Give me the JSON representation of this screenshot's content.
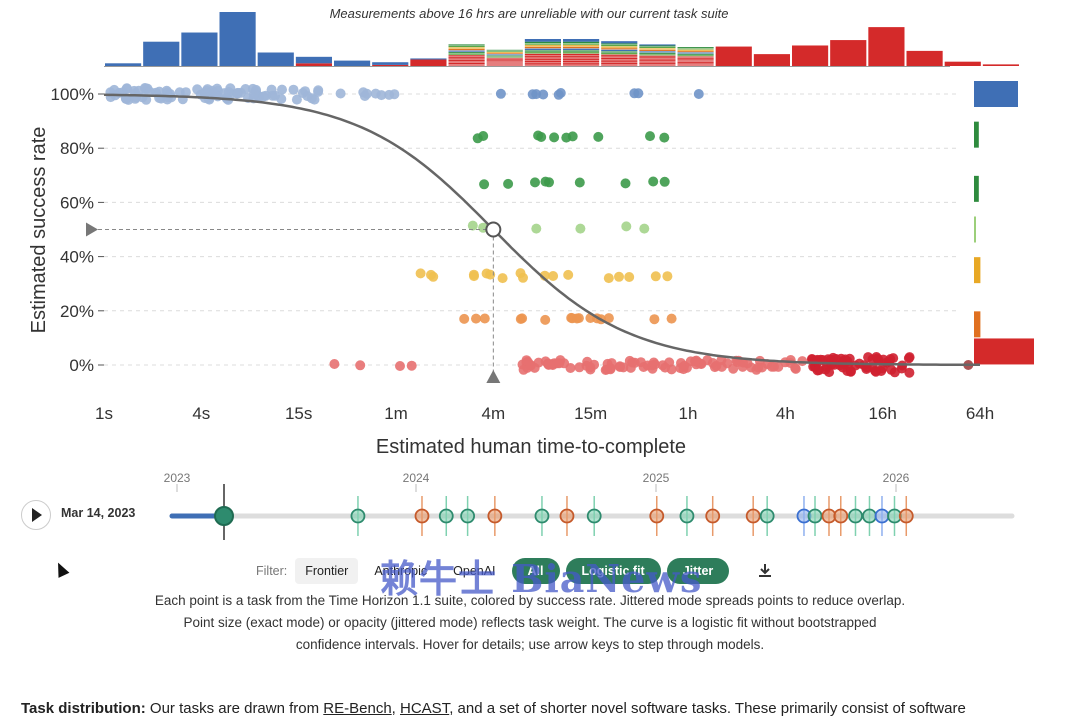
{
  "chart_data": {
    "type": "scatter",
    "title": "",
    "top_note": "Measurements above 16 hrs are unreliable with our current task suite",
    "ylabel": "Estimated success rate",
    "xlabel": "Estimated human time-to-complete",
    "x_ticks": [
      "1s",
      "4s",
      "15s",
      "1m",
      "4m",
      "15m",
      "1h",
      "4h",
      "16h",
      "64h"
    ],
    "y_ticks": [
      "0%",
      "20%",
      "40%",
      "60%",
      "80%",
      "100%"
    ],
    "ylim": [
      0,
      100
    ],
    "x_scale": "log4 steps (1s to 64h)",
    "grid": "horizontal dashed",
    "fit": {
      "type": "logistic",
      "midpoint_x_label": "4m",
      "midpoint_y": 50
    },
    "colors": {
      "p100": "#3f6fb5",
      "p80": "#2e8b3e",
      "p60": "#5aa745",
      "p40": "#9ccf7a",
      "p20": "#e8a825",
      "p10": "#e07020",
      "p0": "#d42a2a",
      "curve": "#666666"
    },
    "top_histogram": {
      "note": "task counts by time bin, stacked by success",
      "bins": [
        {
          "blue": 0.05,
          "red": 0
        },
        {
          "blue": 0.45,
          "red": 0
        },
        {
          "blue": 0.62,
          "red": 0
        },
        {
          "blue": 1.0,
          "red": 0
        },
        {
          "blue": 0.25,
          "red": 0
        },
        {
          "blue": 0.12,
          "red": 0.05
        },
        {
          "blue": 0.1,
          "red": 0
        },
        {
          "blue": 0.05,
          "red": 0.02
        },
        {
          "blue": 0.02,
          "red": 0.12
        },
        {
          "blue": 0,
          "red": 0.4,
          "mixed": true
        },
        {
          "blue": 0,
          "red": 0.3,
          "mixed": true
        },
        {
          "blue": 0.05,
          "red": 0.45,
          "mixed": true
        },
        {
          "blue": 0.05,
          "red": 0.45,
          "mixed": true
        },
        {
          "blue": 0.04,
          "red": 0.42,
          "mixed": true
        },
        {
          "blue": 0.02,
          "red": 0.38,
          "mixed": true
        },
        {
          "blue": 0,
          "red": 0.35,
          "mixed": true
        },
        {
          "blue": 0,
          "red": 0.36
        },
        {
          "blue": 0,
          "red": 0.22
        },
        {
          "blue": 0,
          "red": 0.38
        },
        {
          "blue": 0,
          "red": 0.48
        },
        {
          "blue": 0,
          "red": 0.72
        },
        {
          "blue": 0,
          "red": 0.28
        },
        {
          "blue": 0,
          "red": 0.08
        },
        {
          "blue": 0,
          "red": 0.03
        }
      ]
    },
    "right_histogram": [
      {
        "y": 100,
        "value": 0.55,
        "color": "#3f6fb5"
      },
      {
        "y": 85,
        "value": 0.06,
        "color": "#2e8b3e"
      },
      {
        "y": 65,
        "value": 0.06,
        "color": "#2e8b3e"
      },
      {
        "y": 50,
        "value": 0.02,
        "color": "#9ccf7a"
      },
      {
        "y": 35,
        "value": 0.08,
        "color": "#e8a825"
      },
      {
        "y": 15,
        "value": 0.08,
        "color": "#e07020"
      },
      {
        "y": 5,
        "value": 0.75,
        "color": "#d42a2a"
      }
    ],
    "point_groups": [
      {
        "y": 100,
        "x_range": [
          0.05,
          2.3
        ],
        "count": 90,
        "color": "#9fb6d8",
        "jitter": 6
      },
      {
        "y": 100,
        "x_range": [
          2.4,
          3.0
        ],
        "count": 8,
        "color": "#9fb6d8",
        "jitter": 2
      },
      {
        "y": 100,
        "x_range": [
          4.0,
          6.2
        ],
        "count": 9,
        "color": "#6f93c8",
        "jitter": 1
      },
      {
        "y": 84,
        "x_range": [
          3.7,
          6.0
        ],
        "count": 10,
        "color": "#3c9a4a",
        "jitter": 2
      },
      {
        "y": 67,
        "x_range": [
          3.6,
          6.0
        ],
        "count": 9,
        "color": "#3c9a4a",
        "jitter": 2
      },
      {
        "y": 51,
        "x_range": [
          3.6,
          5.8
        ],
        "count": 6,
        "color": "#a4d48b",
        "jitter": 2
      },
      {
        "y": 33,
        "x_range": [
          3.0,
          5.9
        ],
        "count": 18,
        "color": "#f0c050",
        "jitter": 3
      },
      {
        "y": 17,
        "x_range": [
          3.7,
          6.1
        ],
        "count": 16,
        "color": "#ec9550",
        "jitter": 1
      },
      {
        "y": 0,
        "x_range": [
          2.2,
          3.2
        ],
        "count": 4,
        "color": "#e77070",
        "jitter": 1
      },
      {
        "y": 0,
        "x_range": [
          4.3,
          7.2
        ],
        "count": 95,
        "color": "#e77070",
        "jitter": 5
      },
      {
        "y": 0,
        "x_range": [
          7.2,
          8.3
        ],
        "count": 60,
        "color": "#cf2030",
        "jitter": 8
      },
      {
        "y": 0,
        "x_range": [
          8.8,
          8.9
        ],
        "count": 1,
        "color": "#a04040",
        "jitter": 0
      }
    ]
  },
  "timeline": {
    "years": [
      "2023",
      "2024",
      "2025",
      "2026"
    ],
    "current_date": "Mar 14, 2023",
    "models": [
      {
        "pos": 0.0,
        "org": "openai"
      },
      {
        "pos": 0.182,
        "org": "openai"
      },
      {
        "pos": 0.269,
        "org": "anthropic"
      },
      {
        "pos": 0.302,
        "org": "openai"
      },
      {
        "pos": 0.331,
        "org": "openai"
      },
      {
        "pos": 0.368,
        "org": "anthropic"
      },
      {
        "pos": 0.432,
        "org": "openai"
      },
      {
        "pos": 0.466,
        "org": "anthropic"
      },
      {
        "pos": 0.503,
        "org": "openai"
      },
      {
        "pos": 0.588,
        "org": "anthropic"
      },
      {
        "pos": 0.629,
        "org": "openai"
      },
      {
        "pos": 0.664,
        "org": "anthropic"
      },
      {
        "pos": 0.719,
        "org": "anthropic"
      },
      {
        "pos": 0.738,
        "org": "openai"
      },
      {
        "pos": 0.788,
        "org": "google"
      },
      {
        "pos": 0.803,
        "org": "openai"
      },
      {
        "pos": 0.822,
        "org": "anthropic"
      },
      {
        "pos": 0.838,
        "org": "anthropic"
      },
      {
        "pos": 0.858,
        "org": "openai"
      },
      {
        "pos": 0.877,
        "org": "openai"
      },
      {
        "pos": 0.894,
        "org": "google"
      },
      {
        "pos": 0.911,
        "org": "openai"
      },
      {
        "pos": 0.927,
        "org": "anthropic"
      }
    ]
  },
  "filter": {
    "label": "Filter:",
    "buttons": [
      "Frontier",
      "Anthropic",
      "OpenAI",
      "All"
    ],
    "toggles": [
      "Logistic fit",
      "Jitter"
    ],
    "download_icon": "download-icon"
  },
  "caption": "Each point is a task from the Time Horizon 1.1 suite, colored by success rate. Jittered mode spreads points to reduce overlap. Point size (exact mode) or opacity (jittered mode) reflects task weight. The curve is a logistic fit without bootstrapped confidence intervals. Hover for details; use arrow keys to step through models.",
  "paragraph": {
    "lead": "Task distribution:",
    "t1": " Our tasks are drawn from ",
    "link1": "RE-Bench",
    "t2": ", ",
    "link2": "HCAST",
    "t3": ", and a set of shorter novel software tasks. These primarily consist of software"
  },
  "watermark": "赖牛士 BiaNews"
}
